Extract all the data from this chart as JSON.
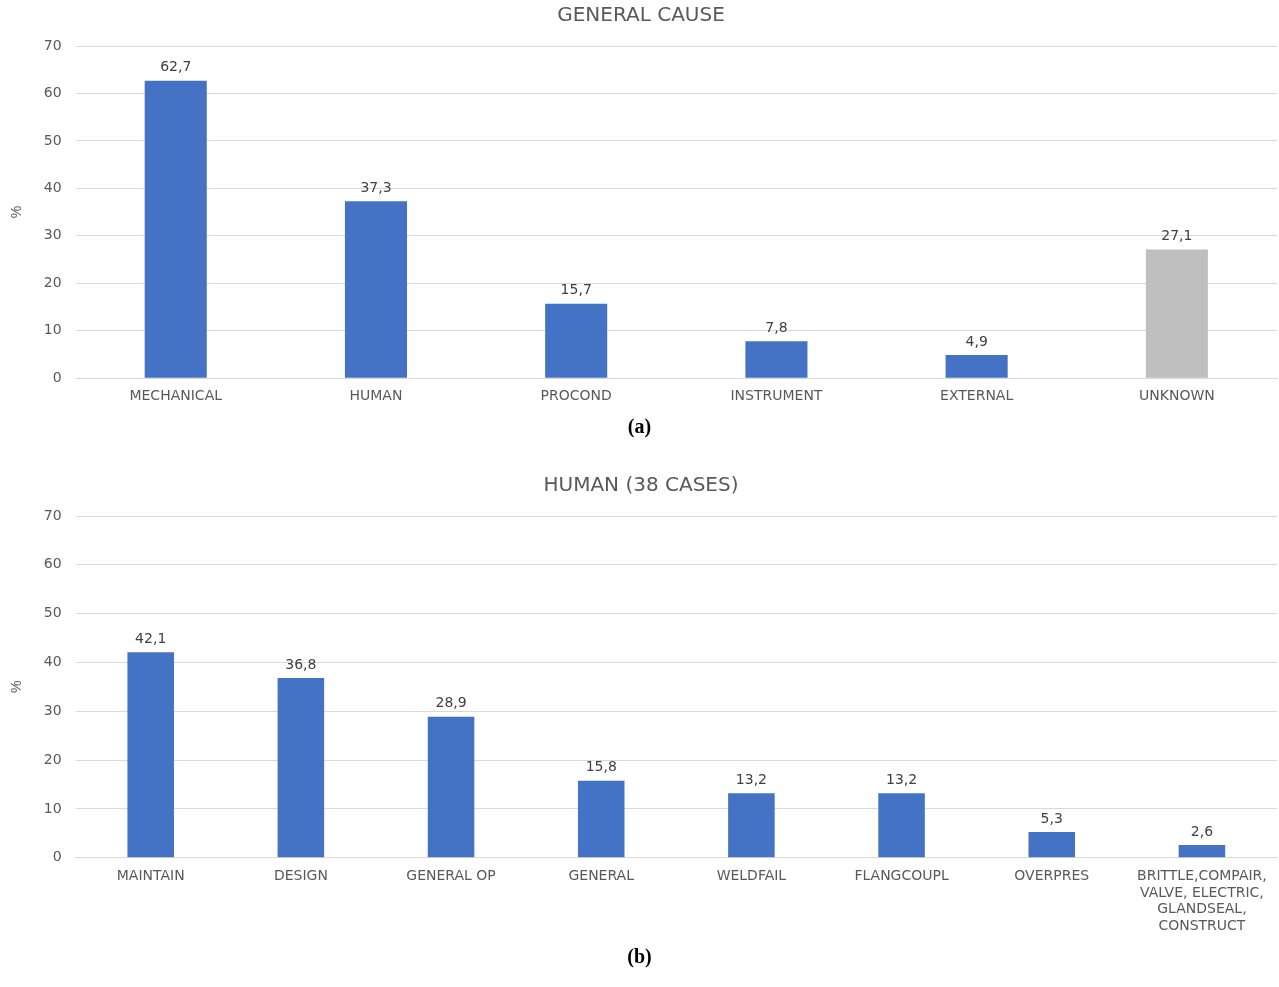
{
  "chart_data": [
    {
      "type": "bar",
      "title": "GENERAL CAUSE",
      "ylabel": "%",
      "categories": [
        "MECHANICAL",
        "HUMAN",
        "PROCOND",
        "INSTRUMENT",
        "EXTERNAL",
        "UNKNOWN"
      ],
      "values": [
        62.7,
        37.3,
        15.7,
        7.8,
        4.9,
        27.1
      ],
      "colors": [
        "#4472c4",
        "#4472c4",
        "#4472c4",
        "#4472c4",
        "#4472c4",
        "#bfbfbf"
      ],
      "value_labels": [
        "62,7",
        "37,3",
        "15,7",
        "7,8",
        "4,9",
        "27,1"
      ],
      "ylim": [
        0,
        70
      ],
      "yticks": [
        0,
        10,
        20,
        30,
        40,
        50,
        60,
        70
      ],
      "grid": "y",
      "annotations": [
        "(a)"
      ]
    },
    {
      "type": "bar",
      "title": "HUMAN (38 CASES)",
      "ylabel": "%",
      "categories": [
        "MAINTAIN",
        "DESIGN",
        "GENERAL OP",
        "GENERAL",
        "WELDFAIL",
        "FLANGCOUPL",
        "OVERPRES",
        "BRITTLE,COMPAIR, VALVE, ELECTRIC, GLANDSEAL, CONSTRUCT"
      ],
      "values": [
        42.1,
        36.8,
        28.9,
        15.8,
        13.2,
        13.2,
        5.3,
        2.6
      ],
      "colors": [
        "#4472c4",
        "#4472c4",
        "#4472c4",
        "#4472c4",
        "#4472c4",
        "#4472c4",
        "#4472c4",
        "#4472c4"
      ],
      "value_labels": [
        "42,1",
        "36,8",
        "28,9",
        "15,8",
        "13,2",
        "13,2",
        "5,3",
        "2,6"
      ],
      "ylim": [
        0,
        70
      ],
      "yticks": [
        0,
        10,
        20,
        30,
        40,
        50,
        60,
        70
      ],
      "grid": "y",
      "annotations": [
        "(b)"
      ]
    }
  ]
}
